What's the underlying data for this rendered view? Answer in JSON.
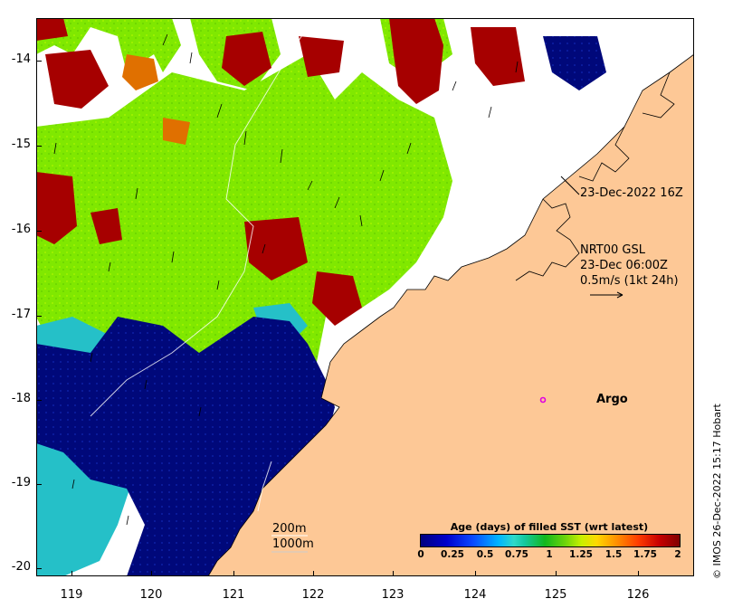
{
  "map": {
    "y_axis_labels": [
      "-14",
      "-15",
      "-16",
      "-17",
      "-18",
      "-19",
      "-20"
    ],
    "x_axis_labels": [
      "119",
      "120",
      "121",
      "122",
      "123",
      "124",
      "125",
      "126"
    ],
    "track_label": "23-Dec-2022 16Z",
    "current_source": "NRT00 GSL",
    "current_time": "23-Dec 06:00Z",
    "current_scale": "0.5m/s (1kt 24h)",
    "argo_label": "Argo",
    "isobath_shallow": "200m",
    "isobath_deep": "1000m",
    "colors": {
      "land": "#fdc896",
      "argo_marker": "#e000e0"
    }
  },
  "legend": {
    "title": "Age (days) of filled SST (wrt latest)",
    "ticks": [
      "0",
      "0.25",
      "0.5",
      "0.75",
      "1",
      "1.25",
      "1.5",
      "1.75",
      "2"
    ]
  },
  "copyright": "© IMOS 26-Dec-2022 15:17 Hobart"
}
